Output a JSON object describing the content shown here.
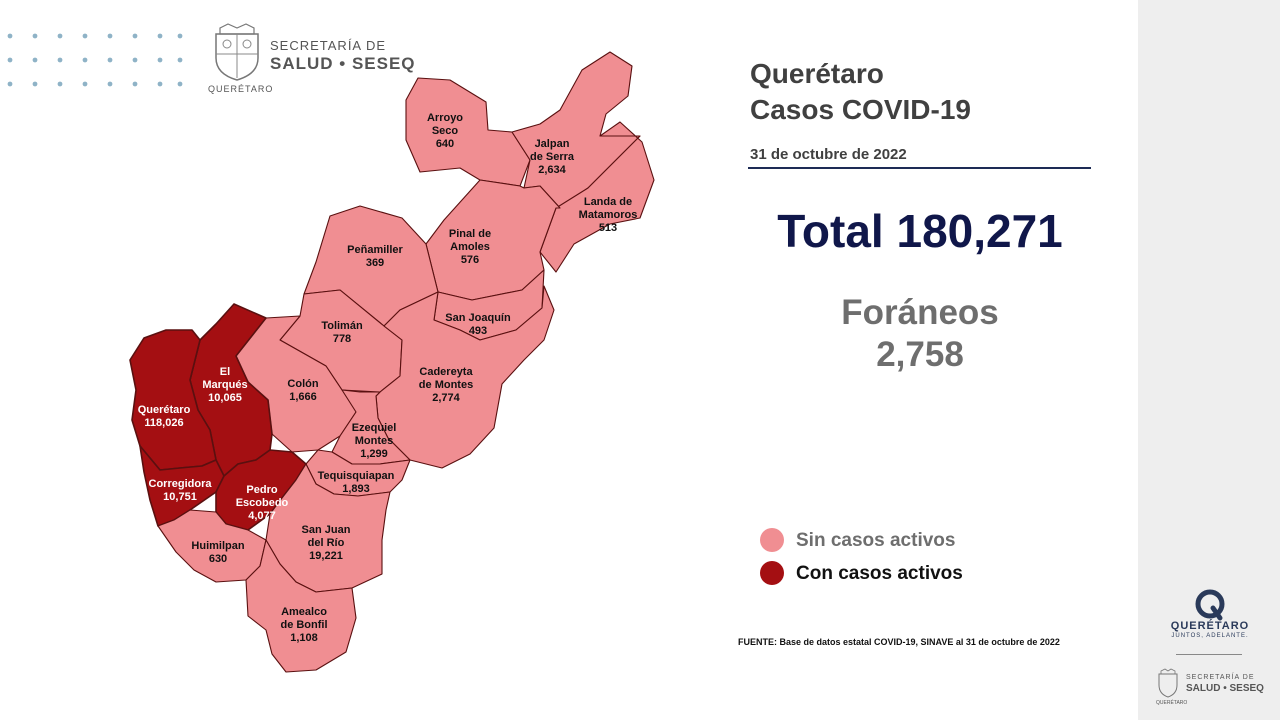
{
  "header_logo": {
    "line1": "SECRETARÍA DE",
    "line2": "SALUD • SESEQ",
    "line3": "QUERÉTARO",
    "seal_icon": "state-seal-icon"
  },
  "title": {
    "line1": "Querétaro",
    "line2": "Casos COVID-19"
  },
  "date": "31 de octubre de 2022",
  "total": "Total 180,271",
  "foraneos": {
    "label": "Foráneos",
    "value": "2,758"
  },
  "legend": [
    {
      "label": "Sin casos activos",
      "color": "#f08e92"
    },
    {
      "label": "Con casos activos",
      "color": "#a40f12"
    }
  ],
  "colors": {
    "no_active": "#f08e92",
    "active": "#a40f12",
    "border": "#5a1010"
  },
  "municipalities": [
    {
      "id": "arroyo",
      "name": "Arroyo Seco",
      "lines": [
        "Arroyo",
        "Seco"
      ],
      "cases": "640",
      "status": "no_active"
    },
    {
      "id": "jalpan",
      "name": "Jalpan de Serra",
      "lines": [
        "Jalpan",
        "de Serra"
      ],
      "cases": "2,634",
      "status": "no_active"
    },
    {
      "id": "landa",
      "name": "Landa de Matamoros",
      "lines": [
        "Landa de",
        "Matamoros"
      ],
      "cases": "513",
      "status": "no_active"
    },
    {
      "id": "pinal",
      "name": "Pinal de Amoles",
      "lines": [
        "Pinal de",
        "Amoles"
      ],
      "cases": "576",
      "status": "no_active"
    },
    {
      "id": "penamiller",
      "name": "Peñamiller",
      "lines": [
        "Peñamiller"
      ],
      "cases": "369",
      "status": "no_active"
    },
    {
      "id": "sanjoaquin",
      "name": "San Joaquín",
      "lines": [
        "San Joaquín"
      ],
      "cases": "493",
      "status": "no_active"
    },
    {
      "id": "toliman",
      "name": "Tolimán",
      "lines": [
        "Tolimán"
      ],
      "cases": "778",
      "status": "no_active"
    },
    {
      "id": "cadereyta",
      "name": "Cadereyta de Montes",
      "lines": [
        "Cadereyta",
        "de Montes"
      ],
      "cases": "2,774",
      "status": "no_active"
    },
    {
      "id": "colon",
      "name": "Colón",
      "lines": [
        "Colón"
      ],
      "cases": "1,666",
      "status": "no_active"
    },
    {
      "id": "elmarques",
      "name": "El Marqués",
      "lines": [
        "El",
        "Marqués"
      ],
      "cases": "10,065",
      "status": "active"
    },
    {
      "id": "queretaro",
      "name": "Querétaro",
      "lines": [
        "Querétaro"
      ],
      "cases": "118,026",
      "status": "active"
    },
    {
      "id": "ezequiel",
      "name": "Ezequiel Montes",
      "lines": [
        "Ezequiel",
        "Montes"
      ],
      "cases": "1,299",
      "status": "no_active"
    },
    {
      "id": "tequisquiapan",
      "name": "Tequisquiapan",
      "lines": [
        "Tequisquiapan"
      ],
      "cases": "1,893",
      "status": "no_active"
    },
    {
      "id": "corregidora",
      "name": "Corregidora",
      "lines": [
        "Corregidora"
      ],
      "cases": "10,751",
      "status": "active"
    },
    {
      "id": "pedroescobedo",
      "name": "Pedro Escobedo",
      "lines": [
        "Pedro",
        "Escobedo"
      ],
      "cases": "4,077",
      "status": "active"
    },
    {
      "id": "huimilpan",
      "name": "Huimilpan",
      "lines": [
        "Huimilpan"
      ],
      "cases": "630",
      "status": "no_active"
    },
    {
      "id": "sanjuan",
      "name": "San Juan del Río",
      "lines": [
        "San Juan",
        "del Río"
      ],
      "cases": "19,221",
      "status": "no_active"
    },
    {
      "id": "amealco",
      "name": "Amealco de Bonfil",
      "lines": [
        "Amealco",
        "de Bonfil"
      ],
      "cases": "1,108",
      "status": "no_active"
    }
  ],
  "source": "FUENTE: Base de datos estatal COVID-19, SINAVE al 31 de octubre de 2022",
  "sidebar_logo": {
    "brand": "QUERÉTARO",
    "slogan": "JUNTOS, ADELANTE.",
    "line1": "SECRETARÍA DE",
    "line2": "SALUD • SESEQ",
    "line3": "QUERÉTARO",
    "icon": "q-ring-icon"
  }
}
